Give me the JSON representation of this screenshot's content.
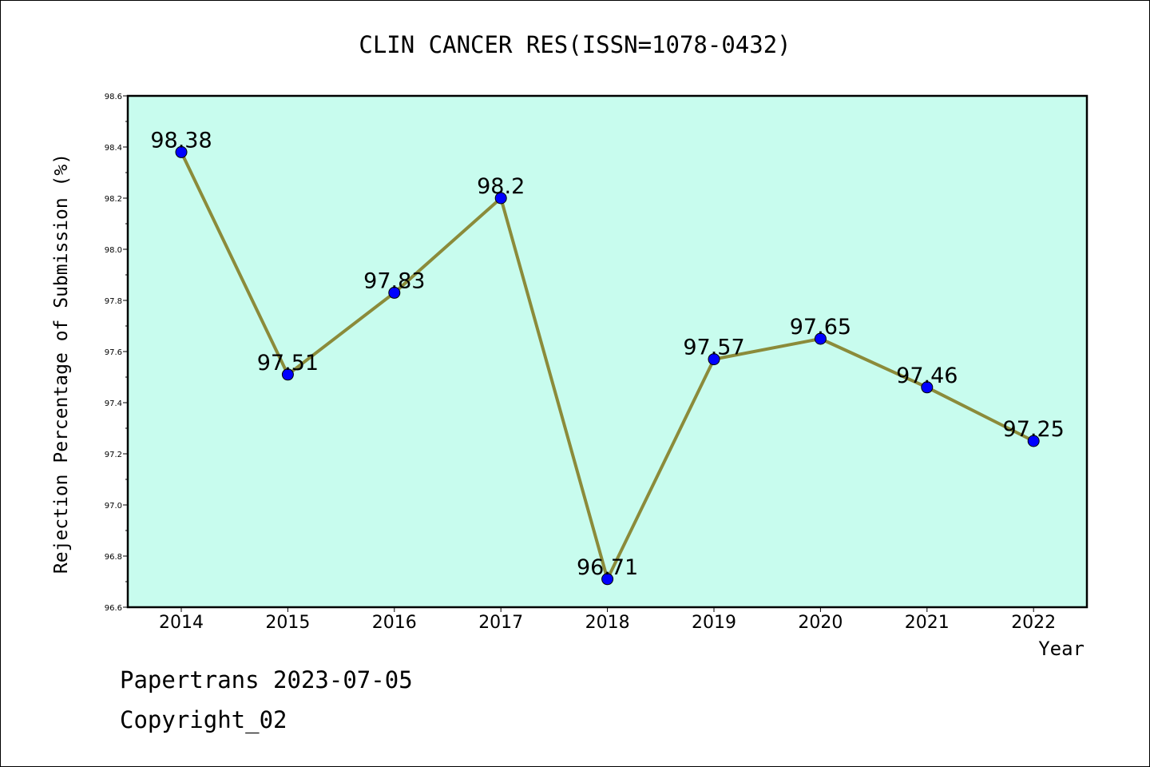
{
  "chart_data": {
    "type": "line",
    "title": "CLIN CANCER RES(ISSN=1078-0432)",
    "xlabel": "Year",
    "ylabel": "Rejection Percentage of Submission (%)",
    "categories": [
      "2014",
      "2015",
      "2016",
      "2017",
      "2018",
      "2019",
      "2020",
      "2021",
      "2022"
    ],
    "series": [
      {
        "values": [
          98.38,
          97.51,
          97.83,
          98.2,
          96.71,
          97.57,
          97.65,
          97.46,
          97.25
        ],
        "labels": [
          "98.38",
          "97.51",
          "97.83",
          "98.2",
          "96.71",
          "97.57",
          "97.65",
          "97.46",
          "97.25"
        ]
      }
    ],
    "ylim": [
      96.6,
      98.6
    ],
    "yticks": [
      "96.6",
      "96.8",
      "97.0",
      "97.2",
      "97.4",
      "97.6",
      "97.8",
      "98.0",
      "98.2",
      "98.4",
      "98.6"
    ],
    "grid": false,
    "colors": {
      "plot_background": "#c8fcee",
      "line": "#8b8b3a",
      "marker": "#0000ff"
    }
  },
  "footer": {
    "line1": "Papertrans 2023-07-05",
    "line2": "Copyright_02"
  }
}
